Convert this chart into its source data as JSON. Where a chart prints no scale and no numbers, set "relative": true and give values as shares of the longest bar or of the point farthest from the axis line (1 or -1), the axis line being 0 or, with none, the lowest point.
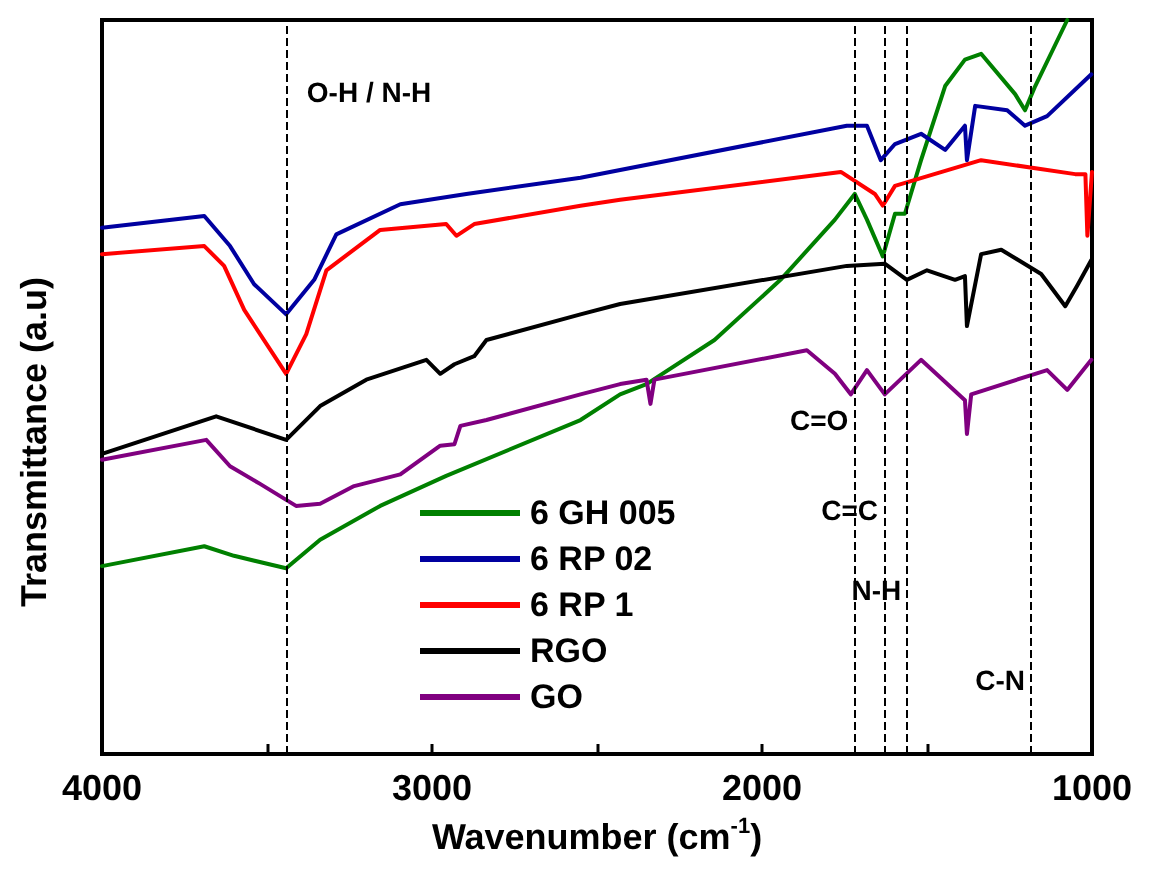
{
  "chart_data": {
    "type": "line",
    "relative": true,
    "xlabel": "Wavenumber (cm$^{-1}$)",
    "ylabel": "Transmittance (a.u)",
    "xlim": [
      4000,
      1000
    ],
    "xticks": [
      4000,
      {
        "value": 3500,
        "label": null
      },
      3000,
      {
        "value": 2500,
        "label": null
      },
      2000,
      {
        "value": 1500,
        "label": null
      },
      1000
    ],
    "legend": "bottom",
    "grid": false,
    "marker": "none",
    "line_style": "solid",
    "ref_lines": [
      {
        "axis": "x",
        "value": 3440,
        "label": "O-H / N-H",
        "line_style": "dashed",
        "color": "#000000"
      },
      {
        "axis": "x",
        "value": 1720,
        "label": "C=O",
        "line_style": "dashed",
        "color": "#000000"
      },
      {
        "axis": "x",
        "value": 1630,
        "label": "C=C",
        "line_style": "dashed",
        "color": "#000000"
      },
      {
        "axis": "x",
        "value": 1560,
        "label": "N-H",
        "line_style": "dashed",
        "color": "#000000"
      },
      {
        "axis": "x",
        "value": 1185,
        "label": "C-N",
        "line_style": "dashed",
        "color": "#000000"
      }
    ],
    "series": [
      {
        "name": "6 GH 005",
        "color": "#008000",
        "x": [
          4000,
          3690,
          3600,
          3442,
          3339,
          3157,
          2957,
          2550,
          2430,
          2350,
          2144,
          1944,
          1779,
          1719,
          1682,
          1634,
          1597,
          1567,
          1518,
          1445,
          1385,
          1336,
          1233,
          1203,
          1172,
          1075
        ],
        "values": [
          0.256,
          0.283,
          0.27,
          0.253,
          0.292,
          0.338,
          0.379,
          0.455,
          0.49,
          0.504,
          0.564,
          0.646,
          0.728,
          0.763,
          0.728,
          0.678,
          0.736,
          0.736,
          0.809,
          0.91,
          0.946,
          0.954,
          0.899,
          0.877,
          0.91,
          1.0
        ]
      },
      {
        "name": "6 RP 02",
        "color": "#0000a0",
        "x": [
          4000,
          3690,
          3612,
          3539,
          3442,
          3357,
          3290,
          3096,
          2896,
          2550,
          1743,
          1682,
          1640,
          1597,
          1518,
          1445,
          1385,
          1379,
          1354,
          1257,
          1203,
          1136,
          1002
        ],
        "values": [
          0.717,
          0.733,
          0.692,
          0.64,
          0.599,
          0.646,
          0.708,
          0.749,
          0.763,
          0.785,
          0.856,
          0.856,
          0.809,
          0.831,
          0.845,
          0.823,
          0.856,
          0.809,
          0.883,
          0.877,
          0.856,
          0.869,
          0.926
        ]
      },
      {
        "name": "6 RP 1",
        "color": "#ff0000",
        "x": [
          4000,
          3690,
          3630,
          3569,
          3442,
          3381,
          3320,
          3157,
          2957,
          2926,
          2872,
          2550,
          2430,
          1761,
          1658,
          1634,
          1597,
          1336,
          1051,
          1020,
          1014,
          1000
        ],
        "values": [
          0.681,
          0.692,
          0.665,
          0.605,
          0.518,
          0.572,
          0.659,
          0.714,
          0.722,
          0.706,
          0.722,
          0.747,
          0.755,
          0.793,
          0.763,
          0.747,
          0.774,
          0.809,
          0.79,
          0.79,
          0.706,
          0.793
        ]
      },
      {
        "name": "RGO",
        "color": "#000000",
        "x": [
          4000,
          3654,
          3442,
          3339,
          3199,
          3017,
          2975,
          2932,
          2872,
          2835,
          2550,
          2430,
          1743,
          1628,
          1561,
          1500,
          1415,
          1385,
          1379,
          1336,
          1275,
          1154,
          1081,
          1045,
          1002
        ],
        "values": [
          0.409,
          0.46,
          0.428,
          0.474,
          0.51,
          0.537,
          0.518,
          0.531,
          0.542,
          0.564,
          0.599,
          0.613,
          0.665,
          0.668,
          0.646,
          0.659,
          0.646,
          0.651,
          0.583,
          0.681,
          0.687,
          0.654,
          0.61,
          0.638,
          0.673
        ]
      },
      {
        "name": "GO",
        "color": "#800080",
        "x": [
          4000,
          3684,
          3612,
          3521,
          3412,
          3339,
          3236,
          3096,
          2975,
          2932,
          2914,
          2835,
          2550,
          2430,
          2350,
          2338,
          2326,
          1864,
          1779,
          1731,
          1682,
          1628,
          1518,
          1385,
          1379,
          1366,
          1172,
          1136,
          1075,
          1002
        ],
        "values": [
          0.401,
          0.428,
          0.392,
          0.368,
          0.338,
          0.341,
          0.365,
          0.381,
          0.42,
          0.422,
          0.447,
          0.455,
          0.49,
          0.504,
          0.51,
          0.477,
          0.51,
          0.55,
          0.518,
          0.49,
          0.523,
          0.49,
          0.537,
          0.482,
          0.436,
          0.49,
          0.518,
          0.523,
          0.496,
          0.537
        ]
      }
    ]
  }
}
